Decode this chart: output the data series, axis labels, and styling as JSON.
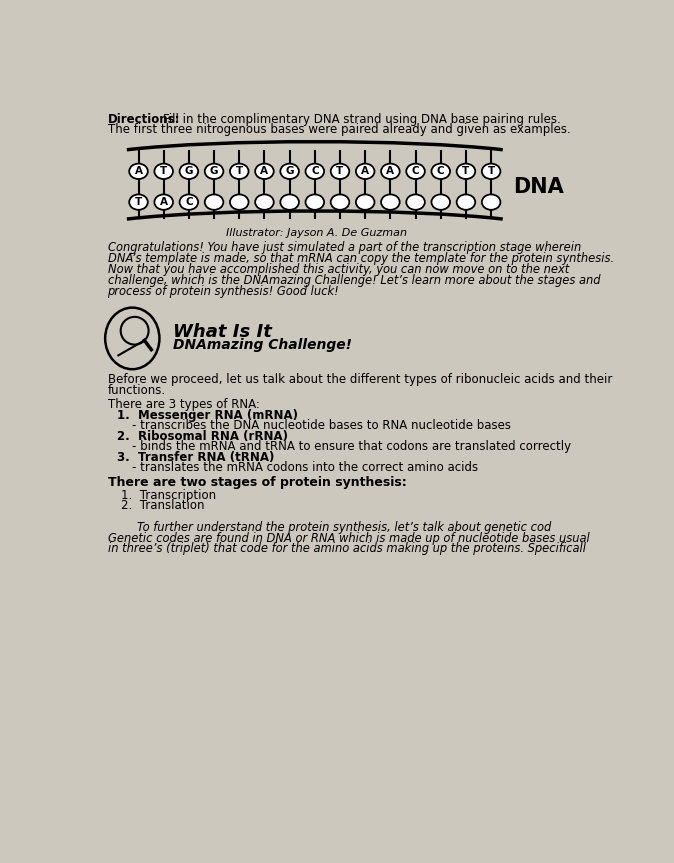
{
  "bg_color": "#cdc8be",
  "directions_bold": "Directions:",
  "top_strand": [
    "A",
    "T",
    "G",
    "G",
    "T",
    "A",
    "G",
    "C",
    "T",
    "A",
    "A",
    "C",
    "C",
    "T",
    "T"
  ],
  "bottom_strand": [
    "T",
    "A",
    "C",
    "",
    "",
    "",
    "",
    "",
    "",
    "",
    "",
    "",
    "",
    "",
    ""
  ],
  "illustrator": "Illustrator: Jayson A. De Guzman",
  "dna_label": "DNA",
  "congrats_text": "Congratulations! You have just simulated a part of the transcription stage wherein\nDNA’s template is made, so that mRNA can copy the template for the protein synthesis.\nNow that you have accomplished this activity, you can now move on to the next\nchallenge, which is the DNAmazing Challenge! Let’s learn more about the stages and\nprocess of protein synthesis! Good luck!",
  "what_is_it": "What Is It",
  "dnamazing": "DNAmazing Challenge!",
  "before_line1": "Before we proceed, let us talk about the different types of ribonucleic acids and their",
  "before_line2": "functions.",
  "rna_header": "There are 3 types of RNA:",
  "rna_types": [
    {
      "label": "1.  Messenger RNA (mRNA)",
      "desc": "    - transcribes the DNA nucleotide bases to RNA nucleotide bases"
    },
    {
      "label": "2.  Ribosomal RNA (rRNA)",
      "desc": "    - binds the mRNA and tRNA to ensure that codons are translated correctly"
    },
    {
      "label": "3.  Transfer RNA (tRNA)",
      "desc": "    - translates the mRNA codons into the correct amino acids"
    }
  ],
  "stages_header": "There are two stages of protein synthesis:",
  "stages": [
    "Transcription",
    "Translation"
  ],
  "final_para_1": "        To further understand the protein synthesis, let’s talk about genetic cod",
  "final_para_2": "Genetic codes are found in DNA or RNA which is made up of nucleotide bases usual",
  "final_para_3": "in three’s (triplet) that code for the amino acids making up the proteins. Specificall"
}
